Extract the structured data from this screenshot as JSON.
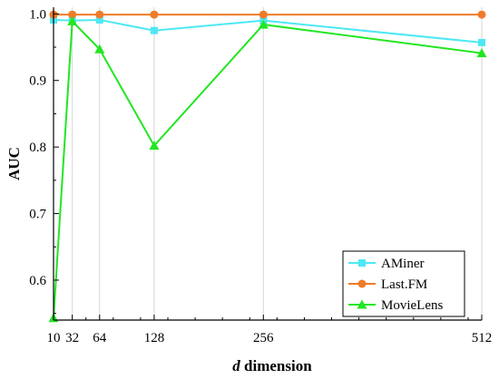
{
  "chart_data": {
    "type": "line",
    "xlabel_prefix": "d",
    "xlabel_suffix": " dimension",
    "ylabel": "AUC",
    "x": [
      10,
      32,
      64,
      128,
      256,
      512
    ],
    "x_tick_labels": [
      "10",
      "32",
      "64",
      "128",
      "256",
      "512"
    ],
    "xlim": [
      10,
      512
    ],
    "ylim": [
      0.54,
      1.01
    ],
    "y_ticks": [
      0.6,
      0.7,
      0.8,
      0.9,
      1.0
    ],
    "y_tick_labels": [
      "0.6",
      "0.7",
      "0.8",
      "0.9",
      "1.0"
    ],
    "grid": "vertical",
    "legend_position": "bottom-right",
    "series": [
      {
        "name": "AMiner",
        "values": [
          0.991,
          0.99,
          0.991,
          0.975,
          0.99,
          0.957
        ],
        "color": "#4de8f4",
        "marker": "square"
      },
      {
        "name": "Last.FM",
        "values": [
          0.999,
          0.999,
          0.999,
          0.999,
          0.999,
          0.999
        ],
        "color": "#f07b2a",
        "marker": "circle"
      },
      {
        "name": "MovieLens",
        "values": [
          0.543,
          0.989,
          0.947,
          0.802,
          0.984,
          0.941
        ],
        "color": "#22e622",
        "marker": "triangle"
      }
    ]
  }
}
